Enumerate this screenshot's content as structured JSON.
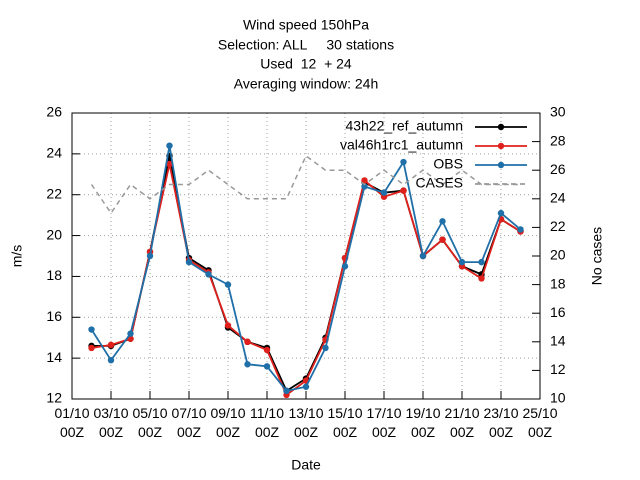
{
  "chart_data": {
    "type": "line",
    "title": [
      "Wind speed 150hPa",
      "Selection: ALL     30 stations",
      "Used  12  + 24",
      "Averaging window: 24h"
    ],
    "xlabel": "Date",
    "ylabel": "m/s",
    "y2label": "No cases",
    "x": [
      "02/10\n00Z",
      "03/10\n00Z",
      "04/10\n00Z",
      "05/10\n00Z",
      "06/10\n00Z",
      "07/10\n00Z",
      "08/10\n00Z",
      "09/10\n00Z",
      "10/10\n00Z",
      "11/10\n00Z",
      "12/10\n00Z",
      "13/10\n00Z",
      "14/10\n00Z",
      "15/10\n00Z",
      "16/10\n00Z",
      "17/10\n00Z",
      "18/10\n00Z",
      "19/10\n00Z",
      "20/10\n00Z",
      "21/10\n00Z",
      "22/10\n00Z",
      "23/10\n00Z",
      "24/10\n00Z"
    ],
    "xlim": [
      "01/10\n00Z",
      "25/10\n00Z"
    ],
    "xticks": [
      "01/10\n00Z",
      "03/10\n00Z",
      "05/10\n00Z",
      "07/10\n00Z",
      "09/10\n00Z",
      "11/10\n00Z",
      "13/10\n00Z",
      "15/10\n00Z",
      "17/10\n00Z",
      "19/10\n00Z",
      "21/10\n00Z",
      "23/10\n00Z",
      "25/10\n00Z"
    ],
    "ylim": [
      12,
      26
    ],
    "yticks": [
      12,
      14,
      16,
      18,
      20,
      22,
      24,
      26
    ],
    "y2lim": [
      10,
      30
    ],
    "y2ticks": [
      10,
      12,
      14,
      16,
      18,
      20,
      22,
      24,
      26,
      28,
      30
    ],
    "grid": true,
    "legend": "top-right",
    "series": [
      {
        "name": "43h22_ref_autumn",
        "color": "#000000",
        "values": [
          14.6,
          14.6,
          14.95,
          19.2,
          23.9,
          18.9,
          18.3,
          15.5,
          14.8,
          14.5,
          12.4,
          13.0,
          15.0,
          18.9,
          22.6,
          22.1,
          22.2,
          19.0,
          19.8,
          18.5,
          18.1,
          20.8,
          20.2
        ]
      },
      {
        "name": "val46h1rc1_autumn",
        "color": "#e0201c",
        "values": [
          14.5,
          14.65,
          14.95,
          19.2,
          23.5,
          18.8,
          18.2,
          15.6,
          14.8,
          14.4,
          12.2,
          12.9,
          14.9,
          18.9,
          22.7,
          21.9,
          22.2,
          19.0,
          19.8,
          18.5,
          17.9,
          20.8,
          20.2
        ]
      },
      {
        "name": "OBS",
        "color": "#1f6fa8",
        "values": [
          15.4,
          13.9,
          15.2,
          19.0,
          24.4,
          18.7,
          18.1,
          17.6,
          13.7,
          13.6,
          12.4,
          12.6,
          14.5,
          18.5,
          22.4,
          22.1,
          23.6,
          19.0,
          20.7,
          18.7,
          18.7,
          21.1,
          20.3
        ]
      },
      {
        "name": "CASES",
        "color": "#999999",
        "axis": "y2",
        "values": [
          25,
          23,
          25,
          24,
          25,
          25,
          26,
          25,
          24,
          24,
          24,
          27,
          26,
          26,
          25,
          26,
          25,
          26,
          25,
          26,
          25,
          25,
          25
        ]
      }
    ]
  }
}
